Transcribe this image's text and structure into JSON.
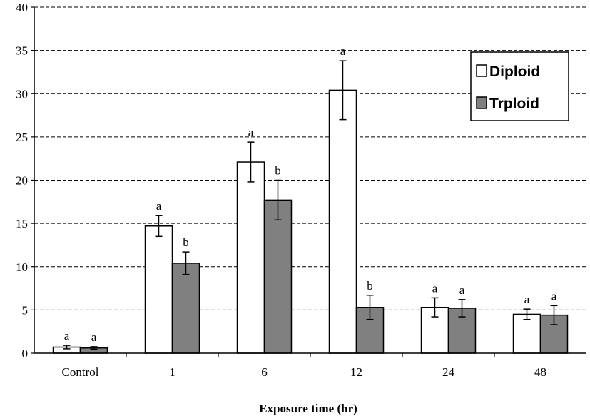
{
  "chart_data": {
    "type": "bar",
    "title": "",
    "xlabel": "Exposure time (hr)",
    "ylabel": "",
    "ylim": [
      0,
      40
    ],
    "yticks": [
      0,
      5,
      10,
      15,
      20,
      25,
      30,
      35,
      40
    ],
    "grid": "horizontal-dashed",
    "legend_position": "top-right",
    "categories": [
      "Control",
      "1",
      "6",
      "12",
      "24",
      "48"
    ],
    "series": [
      {
        "name": "Diploid",
        "color": "#ffffff",
        "values": [
          0.7,
          14.7,
          22.1,
          30.4,
          5.3,
          4.5
        ],
        "errors": [
          0.2,
          1.2,
          2.3,
          3.4,
          1.1,
          0.6
        ],
        "labels": [
          "a",
          "a",
          "a",
          "a",
          "a",
          "a"
        ]
      },
      {
        "name": "Trploid",
        "color": "#808080",
        "values": [
          0.6,
          10.4,
          17.7,
          5.3,
          5.2,
          4.4
        ],
        "errors": [
          0.15,
          1.3,
          2.3,
          1.4,
          1.0,
          1.1
        ],
        "labels": [
          "a",
          "b",
          "b",
          "b",
          "a",
          "a"
        ]
      }
    ]
  }
}
